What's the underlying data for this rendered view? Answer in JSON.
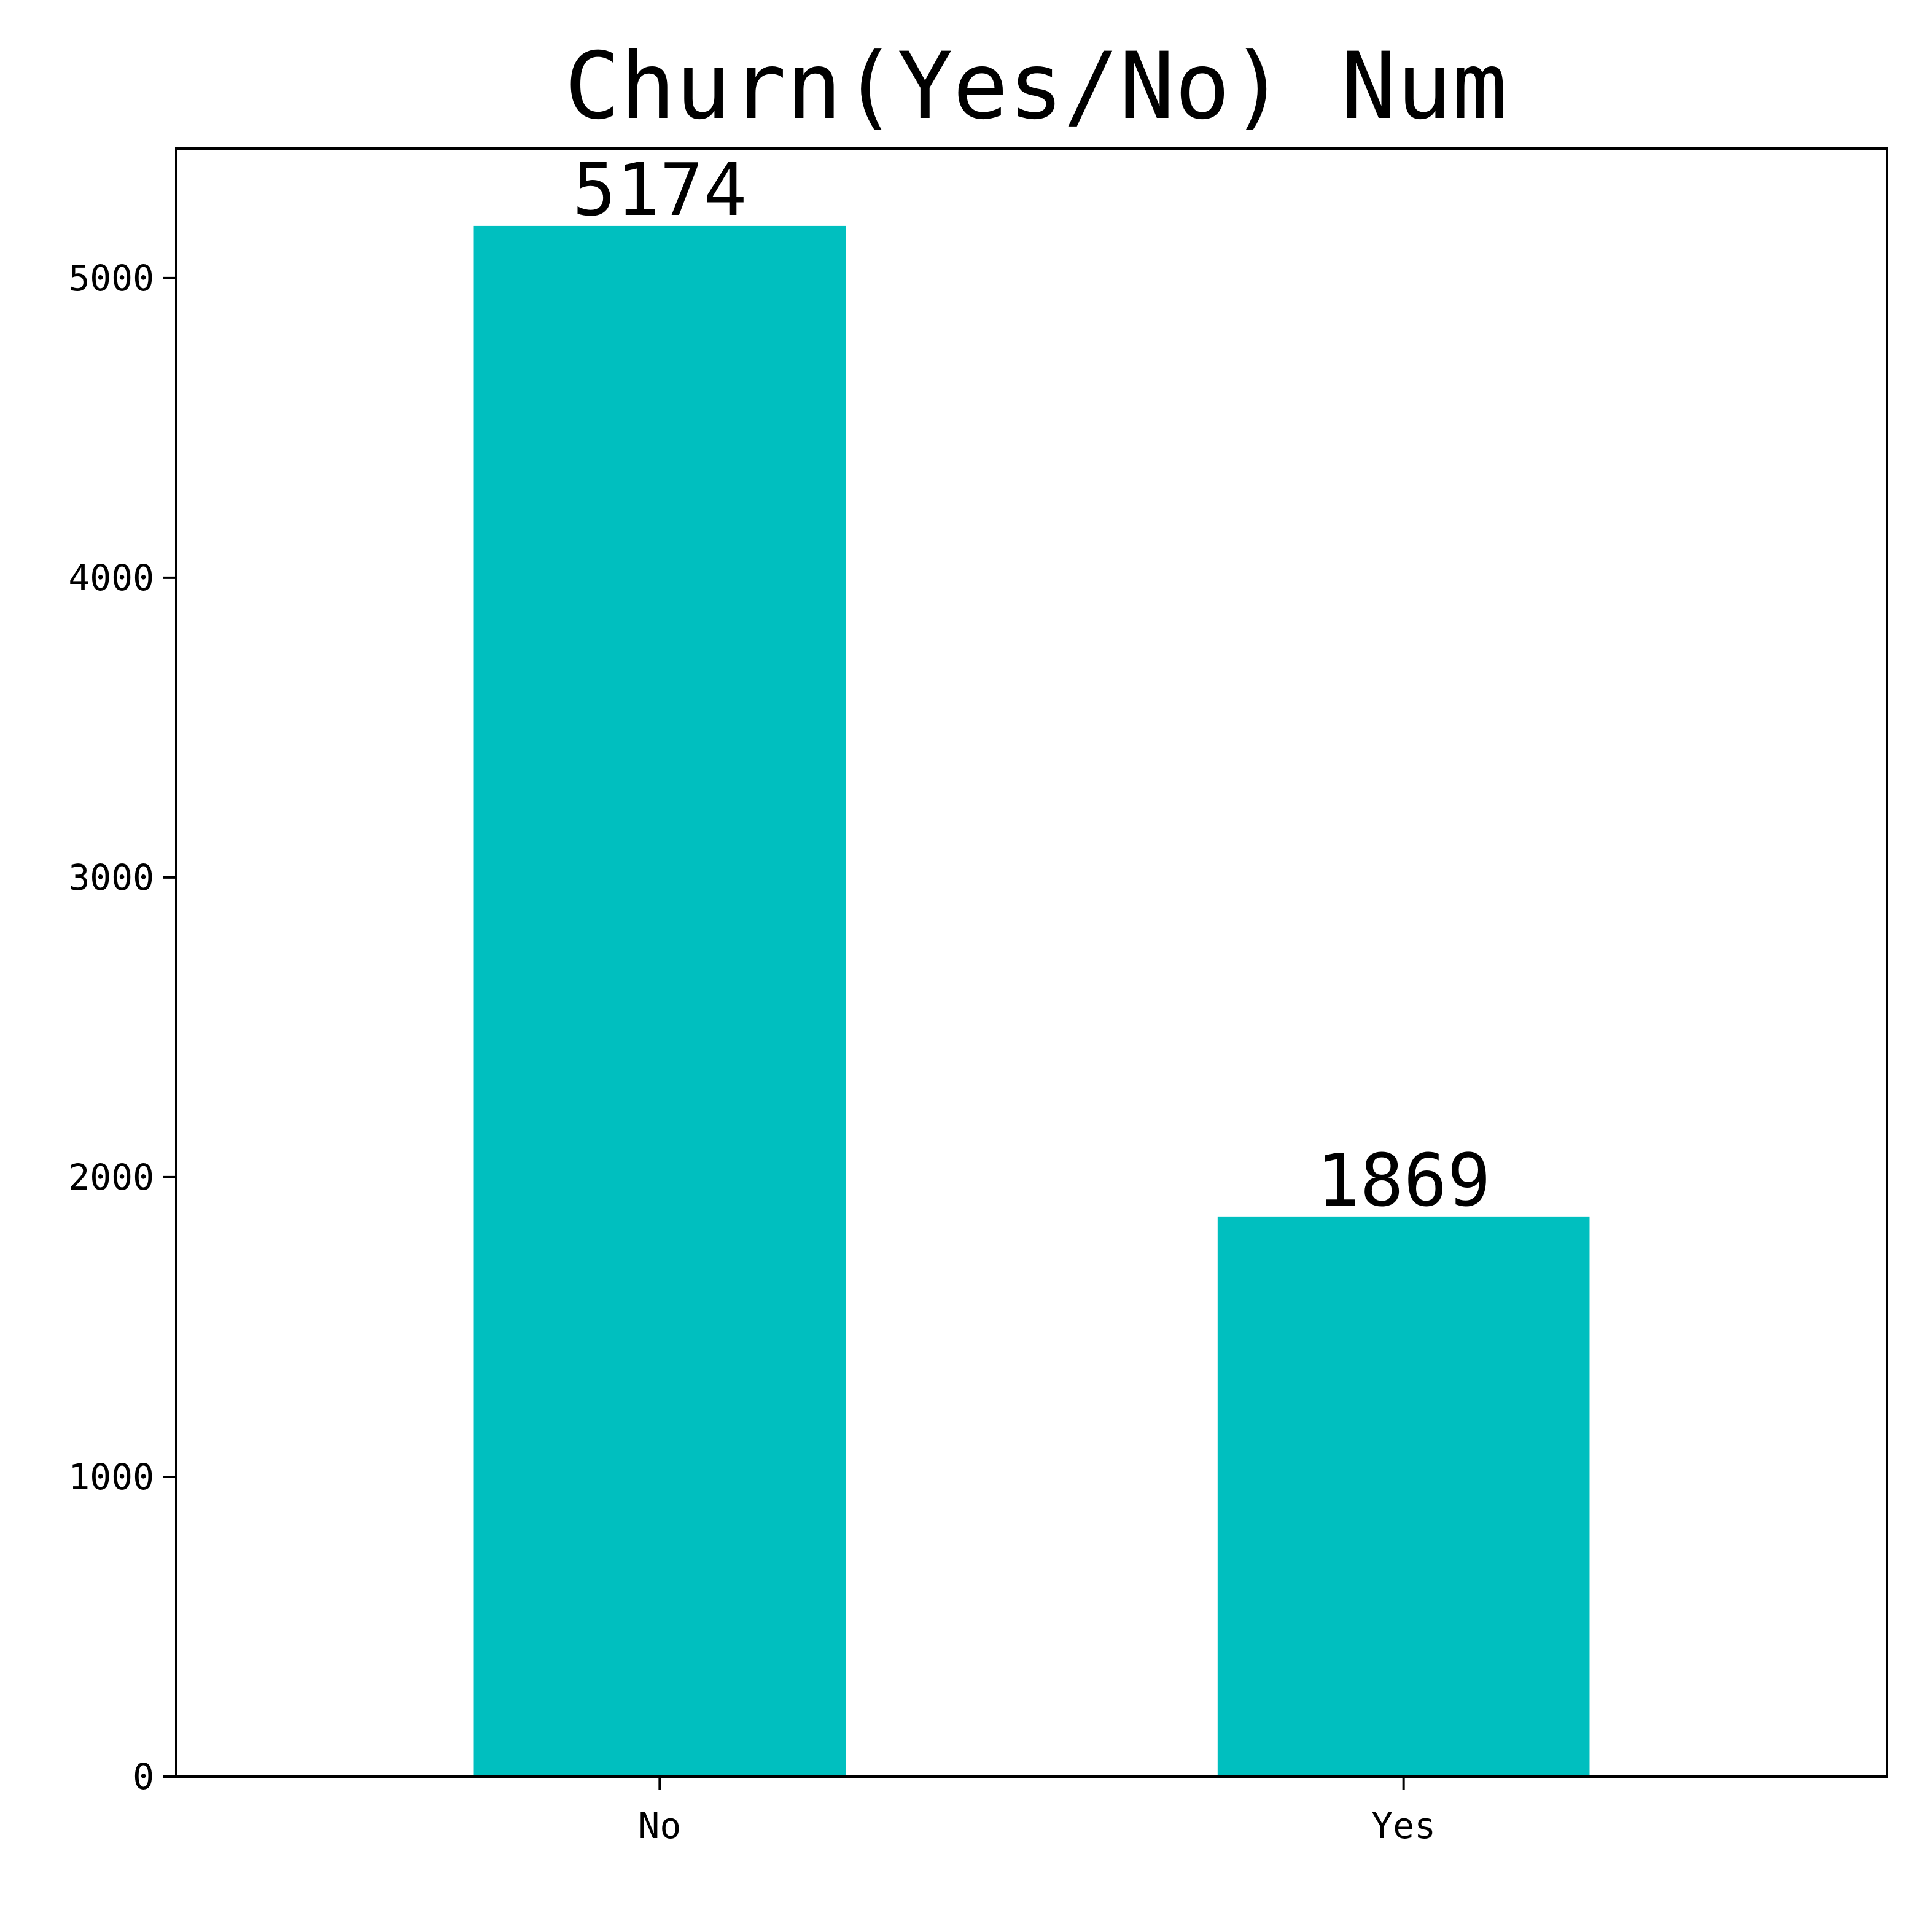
{
  "chart_data": {
    "type": "bar",
    "title": "Churn(Yes/No) Num",
    "xlabel": "",
    "ylabel": "",
    "categories": [
      "No",
      "Yes"
    ],
    "values": [
      5174,
      1869
    ],
    "value_labels": [
      "5174",
      "1869"
    ],
    "ylim": [
      0,
      5432
    ],
    "yticks": [
      0,
      1000,
      2000,
      3000,
      4000,
      5000
    ],
    "ytick_labels": [
      "0",
      "1000",
      "2000",
      "3000",
      "4000",
      "5000"
    ],
    "bar_color": "#00bfbf",
    "grid": false,
    "legend": "none"
  }
}
